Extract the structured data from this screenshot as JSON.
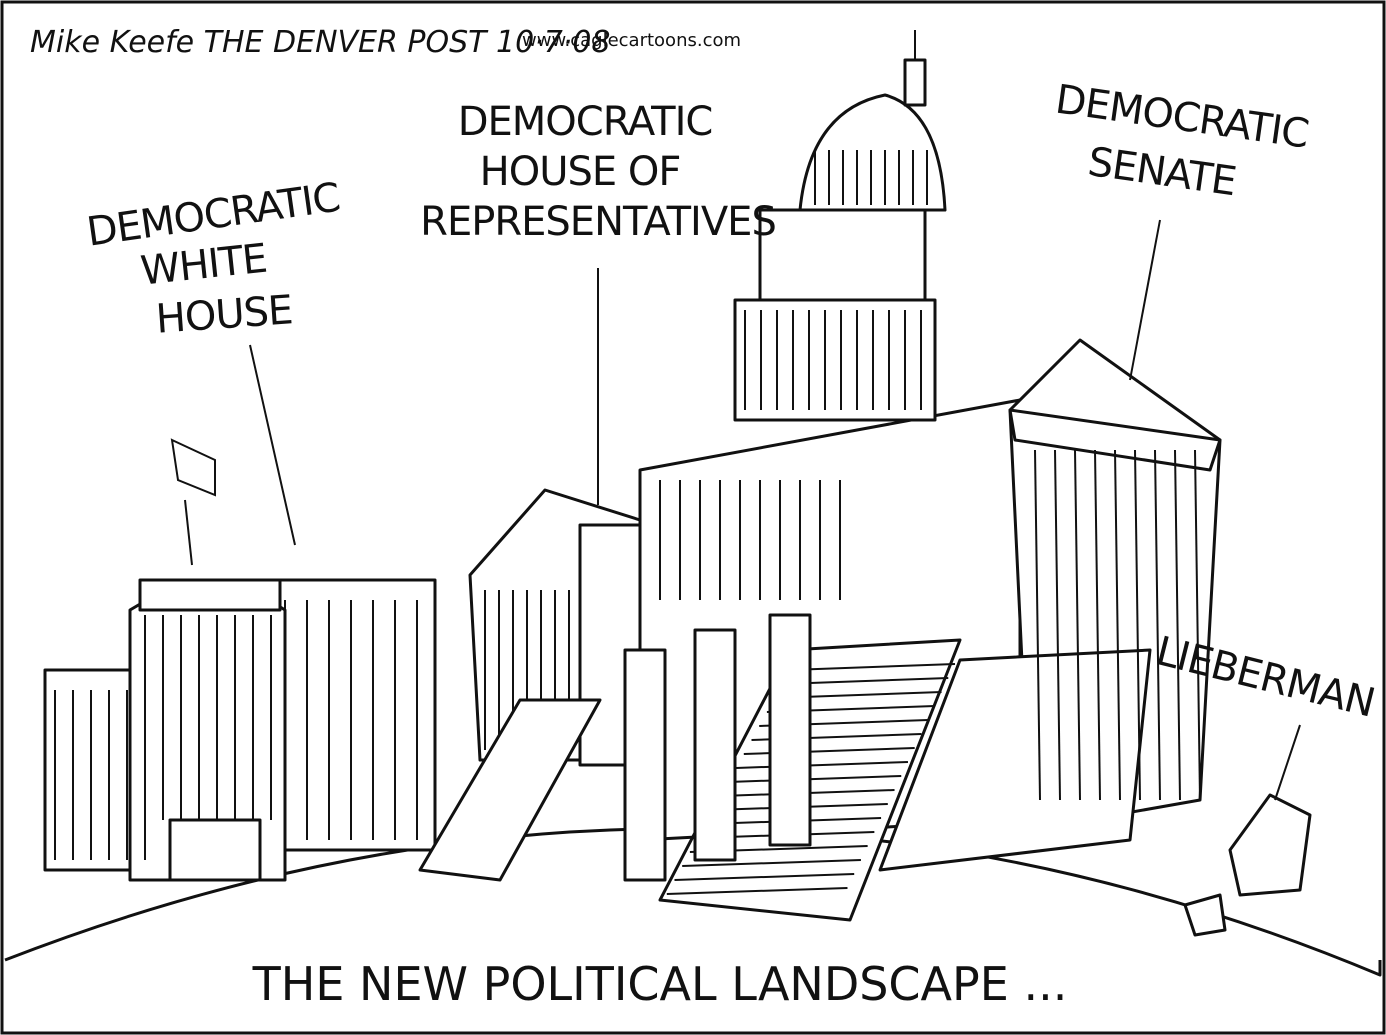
{
  "header": {
    "signature": "Mike Keefe THE DENVER POST 10·7·08",
    "website": "www.caglecartoons.com"
  },
  "labels": [
    {
      "lines": [
        "DEMOCRATIC",
        "WHITE",
        "HOUSE"
      ]
    },
    {
      "lines": [
        "DEMOCRATIC",
        "HOUSE OF",
        "REPRESENTATIVES"
      ]
    },
    {
      "lines": [
        "DEMOCRATIC",
        "SENATE"
      ]
    },
    {
      "lines": [
        "LIEBERMAN"
      ]
    }
  ],
  "caption": "THE NEW POLITICAL LANDSCAPE ..."
}
